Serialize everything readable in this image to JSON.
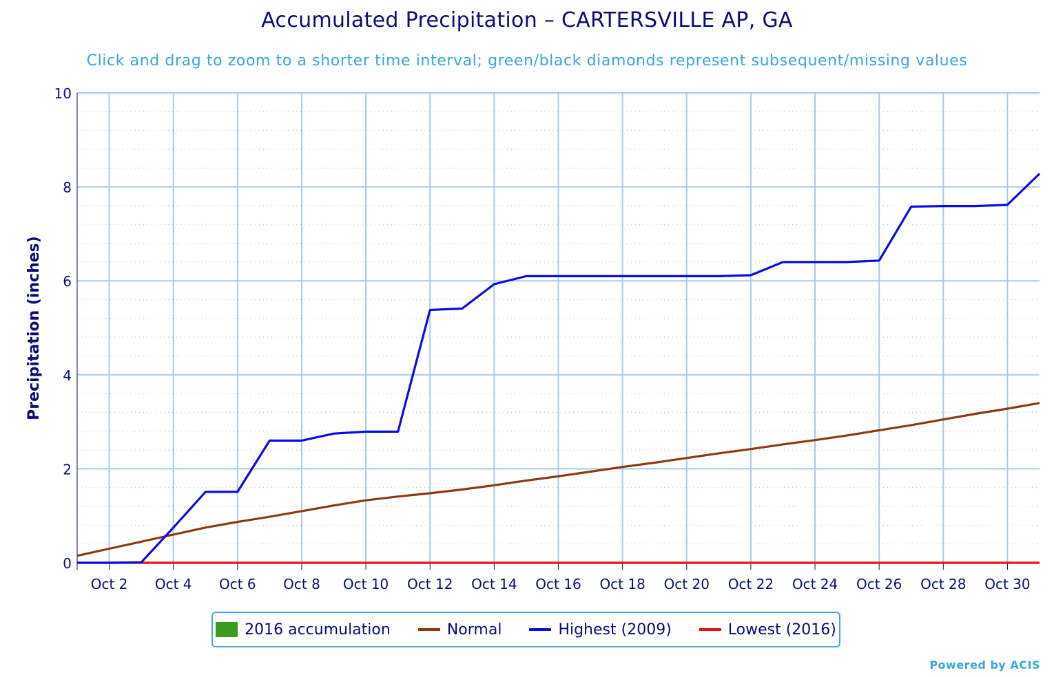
{
  "title": "Accumulated Precipitation – CARTERSVILLE AP, GA",
  "subtitle": "Click and drag to zoom to a shorter time interval; green/black diamonds represent subsequent/missing values",
  "credit": "Powered by ACIS",
  "chart_data": {
    "type": "line",
    "title": "Accumulated Precipitation – CARTERSVILLE AP, GA",
    "ylabel": "Precipitation (inches)",
    "xlabel": "",
    "ylim": [
      0,
      10
    ],
    "yticks": [
      "0",
      "2",
      "4",
      "6",
      "8",
      "10"
    ],
    "ytick_values": [
      0,
      2,
      4,
      6,
      8,
      10
    ],
    "xlim_days": [
      1,
      31
    ],
    "xticks": [
      "Oct 2",
      "Oct 4",
      "Oct 6",
      "Oct 8",
      "Oct 10",
      "Oct 12",
      "Oct 14",
      "Oct 16",
      "Oct 18",
      "Oct 20",
      "Oct 22",
      "Oct 24",
      "Oct 26",
      "Oct 28",
      "Oct 30"
    ],
    "xtick_days": [
      2,
      4,
      6,
      8,
      10,
      12,
      14,
      16,
      18,
      20,
      22,
      24,
      26,
      28,
      30
    ],
    "grid": true,
    "legend_position": "bottom",
    "x_days": [
      1,
      2,
      3,
      4,
      5,
      6,
      7,
      8,
      9,
      10,
      11,
      12,
      13,
      14,
      15,
      16,
      17,
      18,
      19,
      20,
      21,
      22,
      23,
      24,
      25,
      26,
      27,
      28,
      29,
      30,
      31
    ],
    "series": [
      {
        "name": "2016 accumulation",
        "color": "#3c9a1e",
        "marker": "box",
        "values": []
      },
      {
        "name": "Normal",
        "color": "#8b3a13",
        "values": [
          0.15,
          0.3,
          0.45,
          0.6,
          0.75,
          0.87,
          0.98,
          1.1,
          1.22,
          1.33,
          1.41,
          1.48,
          1.56,
          1.65,
          1.75,
          1.84,
          1.94,
          2.04,
          2.13,
          2.23,
          2.33,
          2.42,
          2.52,
          2.61,
          2.71,
          2.82,
          2.93,
          3.05,
          3.17,
          3.28,
          3.4
        ]
      },
      {
        "name": "Highest (2009)",
        "color": "#0a0ae6",
        "values": [
          0.0,
          0.0,
          0.01,
          0.75,
          1.51,
          1.51,
          2.6,
          2.6,
          2.75,
          2.79,
          2.79,
          5.38,
          5.41,
          5.93,
          6.1,
          6.1,
          6.1,
          6.1,
          6.1,
          6.1,
          6.1,
          6.12,
          6.4,
          6.4,
          6.4,
          6.43,
          7.58,
          7.59,
          7.59,
          7.62,
          8.28
        ]
      },
      {
        "name": "Lowest (2016)",
        "color": "#ee1111",
        "values": [
          0.0,
          0.0,
          0.0,
          0.0,
          0.0,
          0.0,
          0.0,
          0.0,
          0.0,
          0.0,
          0.0,
          0.0,
          0.0,
          0.0,
          0.0,
          0.0,
          0.0,
          0.0,
          0.0,
          0.0,
          0.0,
          0.0,
          0.0,
          0.0,
          0.0,
          0.0,
          0.0,
          0.0,
          0.0,
          0.0,
          0.0
        ]
      }
    ]
  }
}
